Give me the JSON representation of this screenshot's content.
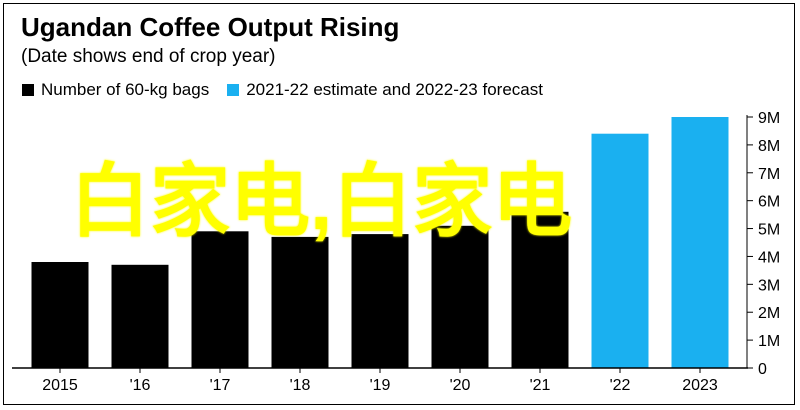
{
  "title": "Ugandan Coffee Output Rising",
  "subtitle": "(Date shows end of crop year)",
  "legend": [
    {
      "label": "Number of 60-kg bags",
      "color": "#000000"
    },
    {
      "label": "2021-22 estimate and 2022-23 forecast",
      "color": "#1ab0f0"
    }
  ],
  "watermark": "白家电,白家电",
  "chart_data": {
    "type": "bar",
    "categories": [
      "2015",
      "'16",
      "'17",
      "'18",
      "'19",
      "'20",
      "'21",
      "'22",
      "2023"
    ],
    "values": [
      3.8,
      3.7,
      4.9,
      4.7,
      4.8,
      5.1,
      5.6,
      8.4,
      9.0
    ],
    "series_colors": [
      "#000000",
      "#000000",
      "#000000",
      "#000000",
      "#000000",
      "#000000",
      "#000000",
      "#1ab0f0",
      "#1ab0f0"
    ],
    "ylim": [
      0,
      9
    ],
    "yticks": [
      0,
      1,
      2,
      3,
      4,
      5,
      6,
      7,
      8,
      9
    ],
    "ytick_labels": [
      "0",
      "1M",
      "2M",
      "3M",
      "4M",
      "5M",
      "6M",
      "7M",
      "8M",
      "9M"
    ],
    "y_axis_position": "right",
    "grid": false
  }
}
